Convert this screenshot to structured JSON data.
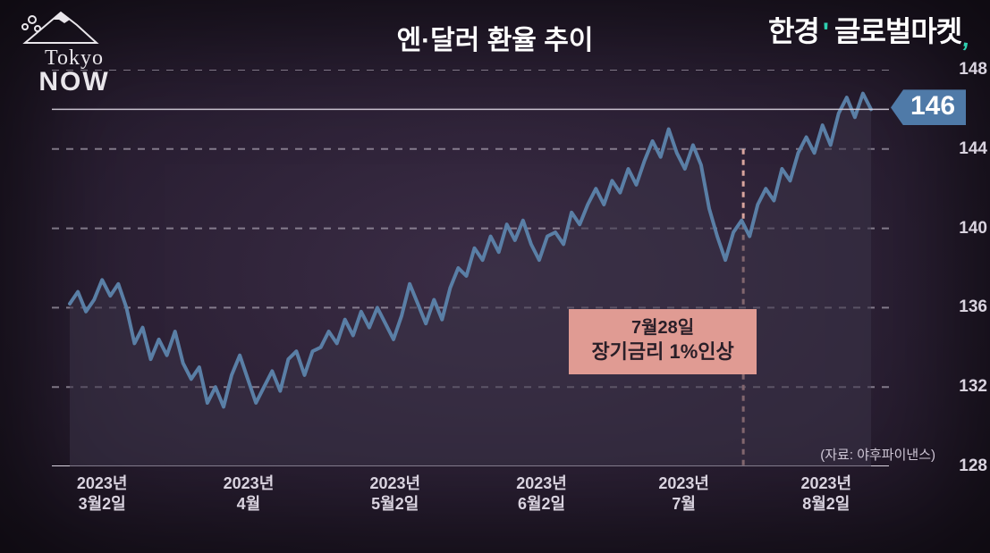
{
  "title": "엔·달러 환율 추이",
  "brand": {
    "hk": "한경",
    "gm": "글로벌마켓"
  },
  "logo": {
    "line1": "Tokyo",
    "line2": "NOW"
  },
  "source_label": "(자료: 야후파이낸스)",
  "chart": {
    "type": "area-line",
    "background_color": "#2e2239",
    "line_color": "#5a7fa6",
    "line_width": 4,
    "area_fill": "#3a3347",
    "area_opacity": 0.55,
    "grid_color": "#bdb6c4",
    "grid_dash": "8 8",
    "axis_color": "#d9d3df",
    "ylim": [
      128,
      148
    ],
    "y_ticks": [
      128,
      132,
      136,
      140,
      144,
      148
    ],
    "y_fontsize": 19,
    "y_fontweight": 600,
    "x_labels": [
      "2023년\n3월2일",
      "2023년\n4월",
      "2023년\n5월2일",
      "2023년\n6월2일",
      "2023년\n7월",
      "2023년\n8월2일"
    ],
    "x_positions": [
      0.06,
      0.235,
      0.41,
      0.585,
      0.755,
      0.925
    ],
    "x_fontsize": 18,
    "series": [
      136.2,
      136.8,
      135.8,
      136.4,
      137.4,
      136.6,
      137.2,
      136.0,
      134.2,
      135.0,
      133.4,
      134.4,
      133.6,
      134.8,
      133.2,
      132.4,
      133.0,
      131.2,
      132.0,
      131.0,
      132.6,
      133.6,
      132.4,
      131.2,
      132.0,
      132.8,
      131.8,
      133.4,
      133.8,
      132.6,
      133.8,
      134.0,
      134.8,
      134.2,
      135.4,
      134.6,
      135.8,
      135.0,
      136.0,
      135.2,
      134.4,
      135.6,
      137.2,
      136.2,
      135.2,
      136.4,
      135.4,
      137.0,
      138.0,
      137.6,
      139.0,
      138.4,
      139.6,
      138.8,
      140.2,
      139.4,
      140.4,
      139.2,
      138.4,
      139.6,
      139.8,
      139.2,
      140.8,
      140.2,
      141.2,
      142.0,
      141.2,
      142.4,
      141.8,
      143.0,
      142.2,
      143.4,
      144.4,
      143.6,
      145.0,
      143.8,
      143.0,
      144.2,
      143.2,
      141.0,
      139.6,
      138.4,
      139.8,
      140.4,
      139.6,
      141.2,
      142.0,
      141.4,
      143.0,
      142.4,
      143.8,
      144.6,
      143.8,
      145.2,
      144.2,
      145.8,
      146.6,
      145.6,
      146.8,
      146.0
    ],
    "current_value_badge": {
      "value": "146",
      "bg": "#4f7aa8",
      "color": "#ffffff",
      "fontsize": 30,
      "at_y": 146
    },
    "annotation": {
      "line1": "7월28일",
      "line2": "장기금리 1%인상",
      "bg": "#e09b93",
      "text_color": "#2a1f28",
      "at_x": 0.826,
      "vline_color": "#d9a59e",
      "vline_dash": "6 6",
      "vline_width": 3
    }
  }
}
